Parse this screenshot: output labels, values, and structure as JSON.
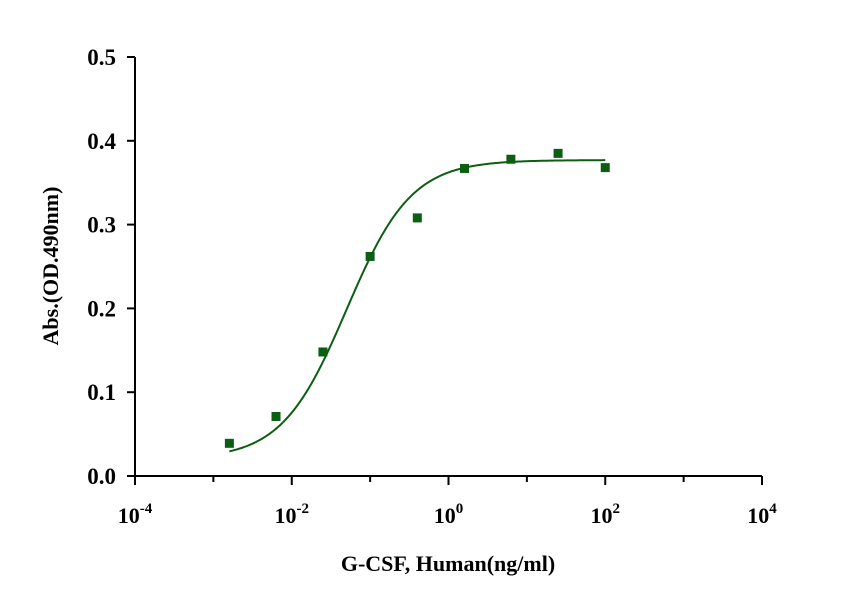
{
  "chart_data": {
    "type": "scatter",
    "title": "",
    "xlabel": "G-CSF, Human(ng/ml)",
    "ylabel": "Abs.(OD.490nm)",
    "x_scale": "log10",
    "xlim": [
      0.0001,
      10000
    ],
    "ylim": [
      0,
      0.5
    ],
    "grid": false,
    "legend": "none",
    "x_ticks": [
      {
        "value": 0.0001,
        "base": "10",
        "exp": "-4"
      },
      {
        "value": 0.01,
        "base": "10",
        "exp": "-2"
      },
      {
        "value": 1,
        "base": "10",
        "exp": "0"
      },
      {
        "value": 100,
        "base": "10",
        "exp": "2"
      },
      {
        "value": 10000,
        "base": "10",
        "exp": "4"
      }
    ],
    "y_ticks": [
      {
        "value": 0,
        "label": "0.0"
      },
      {
        "value": 0.1,
        "label": "0.1"
      },
      {
        "value": 0.2,
        "label": "0.2"
      },
      {
        "value": 0.3,
        "label": "0.3"
      },
      {
        "value": 0.4,
        "label": "0.4"
      },
      {
        "value": 0.5,
        "label": "0.5"
      }
    ],
    "series": [
      {
        "marker": "square",
        "color": "#0b5e12",
        "x": [
          0.0016,
          0.0063,
          0.025,
          0.1,
          0.4,
          1.6,
          6.25,
          25,
          100
        ],
        "y": [
          0.039,
          0.071,
          0.148,
          0.262,
          0.308,
          0.367,
          0.378,
          0.385,
          0.368
        ]
      }
    ],
    "fit_curve": {
      "model": "4PL",
      "color": "#0b5e12",
      "bottom": 0.02,
      "top": 0.377,
      "ec50": 0.05,
      "hill": 1.05,
      "x_range": [
        0.0016,
        100
      ]
    }
  }
}
